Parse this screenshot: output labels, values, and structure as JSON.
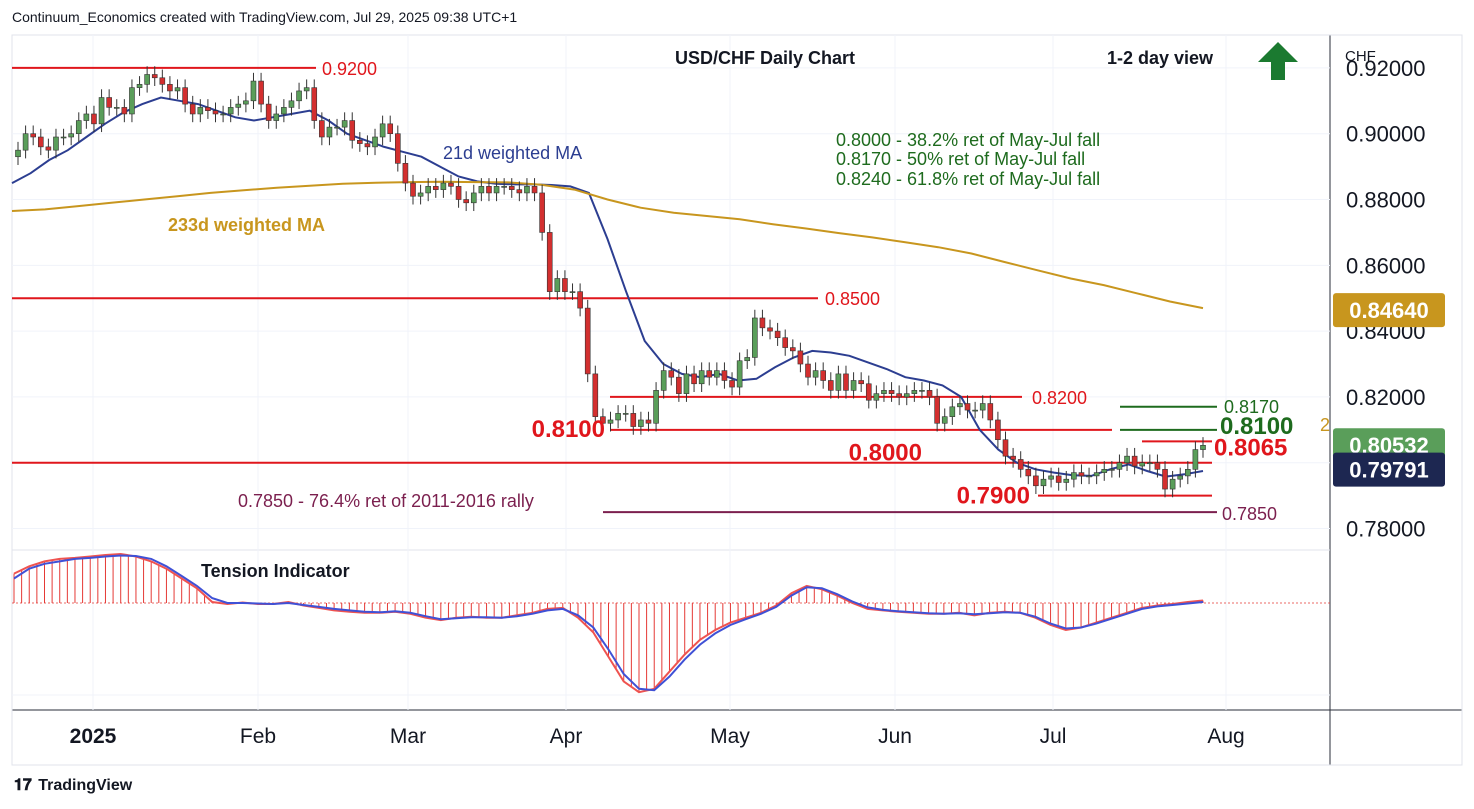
{
  "header": {
    "text": "Continuum_Economics created with TradingView.com, Jul 29, 2025 09:38 UTC+1"
  },
  "footer": {
    "brand": "TradingView"
  },
  "icons": {
    "trend_arrow": "up-arrow-icon",
    "trend_arrow_color": "#1b7a30"
  },
  "chart_data": {
    "type": "candlestick",
    "title": "USD/CHF Daily Chart",
    "subtitle": "1-2 day view",
    "currency_label": "CHF",
    "x_tick_labels": [
      "2025",
      "Feb",
      "Mar",
      "Apr",
      "May",
      "Jun",
      "Jul",
      "Aug"
    ],
    "y_tick_labels": [
      "0.92000",
      "0.90000",
      "0.88000",
      "0.86000",
      "0.84000",
      "0.82000",
      "0.80000",
      "0.78000"
    ],
    "ylim": [
      0.775,
      0.93
    ],
    "grid": true,
    "colors": {
      "up": "#5a9e5a",
      "down": "#d32f2f",
      "ma21": "#2c3e91",
      "ma233": "#c8961e",
      "level": "#e0161c",
      "retrace": "#1e6b1e",
      "ret_7850": "#7b1f4e"
    },
    "price_badges": [
      {
        "label": "0.84640",
        "bg": "#c8961e",
        "fg": "#ffffff",
        "value": 0.8464
      },
      {
        "label": "0.80532",
        "bg": "#5a9e5a",
        "fg": "#ffffff",
        "value": 0.80532
      },
      {
        "label": "0.79791",
        "bg": "#1d2751",
        "fg": "#ffffff",
        "value": 0.79791
      }
    ],
    "ma_labels": {
      "ma21": "21d weighted MA",
      "ma233": "233d weighted MA"
    },
    "retracement_notes": [
      "0.8000 - 38.2% ret of May-Jul fall",
      "0.8170 - 50% ret of May-Jul fall",
      "0.8240 - 61.8% ret of May-Jul fall"
    ],
    "levels": [
      {
        "value": 0.92,
        "label": "0.9200"
      },
      {
        "value": 0.85,
        "label": "0.8500"
      },
      {
        "value": 0.82,
        "label": "0.8200"
      },
      {
        "value": 0.81,
        "label": "0.8100"
      },
      {
        "value": 0.8,
        "label": "0.8000"
      },
      {
        "value": 0.79,
        "label": "0.7900"
      },
      {
        "value": 0.8065,
        "label": "0.8065"
      }
    ],
    "right_labels": [
      {
        "value": 0.817,
        "label": "0.8170"
      },
      {
        "value": 0.81,
        "label": "0.8100"
      }
    ],
    "fib_7850": {
      "value": 0.785,
      "label": "0.7850",
      "note": "0.7850 - 76.4% ret of 2011-2016 rally"
    },
    "close": [
      0.895,
      0.9,
      0.899,
      0.896,
      0.895,
      0.899,
      0.899,
      0.9,
      0.904,
      0.906,
      0.903,
      0.911,
      0.908,
      0.908,
      0.906,
      0.914,
      0.915,
      0.918,
      0.917,
      0.915,
      0.913,
      0.914,
      0.909,
      0.906,
      0.908,
      0.907,
      0.906,
      0.906,
      0.908,
      0.909,
      0.91,
      0.916,
      0.909,
      0.904,
      0.906,
      0.908,
      0.91,
      0.913,
      0.914,
      0.904,
      0.899,
      0.902,
      0.902,
      0.904,
      0.898,
      0.897,
      0.896,
      0.899,
      0.903,
      0.9,
      0.891,
      0.885,
      0.881,
      0.882,
      0.884,
      0.883,
      0.885,
      0.884,
      0.88,
      0.879,
      0.882,
      0.884,
      0.882,
      0.884,
      0.884,
      0.883,
      0.882,
      0.884,
      0.882,
      0.87,
      0.852,
      0.856,
      0.852,
      0.852,
      0.847,
      0.827,
      0.814,
      0.812,
      0.813,
      0.815,
      0.815,
      0.811,
      0.813,
      0.812,
      0.822,
      0.828,
      0.826,
      0.821,
      0.827,
      0.824,
      0.828,
      0.826,
      0.828,
      0.825,
      0.823,
      0.831,
      0.832,
      0.844,
      0.841,
      0.84,
      0.838,
      0.835,
      0.834,
      0.83,
      0.826,
      0.828,
      0.825,
      0.822,
      0.827,
      0.822,
      0.825,
      0.824,
      0.819,
      0.821,
      0.822,
      0.821,
      0.82,
      0.821,
      0.822,
      0.822,
      0.82,
      0.812,
      0.814,
      0.817,
      0.818,
      0.816,
      0.816,
      0.818,
      0.813,
      0.807,
      0.802,
      0.801,
      0.798,
      0.796,
      0.793,
      0.795,
      0.796,
      0.794,
      0.795,
      0.797,
      0.796,
      0.796,
      0.797,
      0.798,
      0.798,
      0.8,
      0.802,
      0.799,
      0.8,
      0.8,
      0.798,
      0.792,
      0.795,
      0.796,
      0.798,
      0.804,
      0.8053
    ],
    "ma21": [
      0.885,
      0.888,
      0.892,
      0.895,
      0.899,
      0.903,
      0.9065,
      0.909,
      0.911,
      0.91,
      0.909,
      0.907,
      0.905,
      0.904,
      0.905,
      0.906,
      0.907,
      0.904,
      0.9,
      0.898,
      0.896,
      0.8945,
      0.893,
      0.89,
      0.887,
      0.8855,
      0.8848,
      0.8846,
      0.8846,
      0.8844,
      0.884,
      0.882,
      0.868,
      0.852,
      0.837,
      0.83,
      0.827,
      0.826,
      0.827,
      0.825,
      0.8255,
      0.829,
      0.832,
      0.834,
      0.8335,
      0.8325,
      0.8305,
      0.8285,
      0.826,
      0.825,
      0.8235,
      0.82,
      0.81,
      0.804,
      0.8,
      0.798,
      0.797,
      0.7962,
      0.796,
      0.798,
      0.7995,
      0.7975,
      0.7958,
      0.7965,
      0.7975
    ],
    "ma233": [
      0.8765,
      0.877,
      0.878,
      0.879,
      0.88,
      0.881,
      0.882,
      0.8828,
      0.8836,
      0.8842,
      0.8848,
      0.8851,
      0.8853,
      0.8854,
      0.8853,
      0.8852,
      0.8845,
      0.883,
      0.88,
      0.8775,
      0.876,
      0.875,
      0.874,
      0.8725,
      0.8712,
      0.8698,
      0.8685,
      0.867,
      0.8655,
      0.8636,
      0.861,
      0.8585,
      0.856,
      0.854,
      0.8515,
      0.849,
      0.847
    ],
    "tension_indicator": {
      "label": "Tension Indicator",
      "histogram": [
        0.6,
        0.75,
        0.85,
        0.9,
        0.92,
        0.95,
        0.98,
        1.0,
        0.95,
        0.85,
        0.7,
        0.5,
        0.3,
        0.02,
        -0.02,
        0.01,
        -0.02,
        -0.02,
        0.02,
        -0.05,
        -0.1,
        -0.15,
        -0.18,
        -0.2,
        -0.2,
        -0.18,
        -0.22,
        -0.3,
        -0.35,
        -0.3,
        -0.28,
        -0.3,
        -0.3,
        -0.25,
        -0.2,
        -0.12,
        -0.1,
        -0.3,
        -0.6,
        -1.1,
        -1.6,
        -1.82,
        -1.75,
        -1.4,
        -1.05,
        -0.75,
        -0.55,
        -0.4,
        -0.3,
        -0.2,
        -0.05,
        0.2,
        0.35,
        0.28,
        0.15,
        0.0,
        -0.12,
        -0.15,
        -0.18,
        -0.2,
        -0.22,
        -0.22,
        -0.2,
        -0.25,
        -0.2,
        -0.18,
        -0.2,
        -0.3,
        -0.45,
        -0.55,
        -0.5,
        -0.4,
        -0.3,
        -0.2,
        -0.1,
        -0.05,
        -0.02,
        0.02,
        0.05
      ],
      "line_blue": [
        0.5,
        0.7,
        0.8,
        0.85,
        0.9,
        0.92,
        0.95,
        0.97,
        0.96,
        0.9,
        0.75,
        0.55,
        0.35,
        0.1,
        0.0,
        0.0,
        -0.01,
        -0.02,
        0.0,
        -0.04,
        -0.08,
        -0.12,
        -0.15,
        -0.18,
        -0.19,
        -0.17,
        -0.2,
        -0.27,
        -0.33,
        -0.31,
        -0.29,
        -0.29,
        -0.3,
        -0.27,
        -0.22,
        -0.15,
        -0.12,
        -0.25,
        -0.5,
        -0.95,
        -1.45,
        -1.75,
        -1.78,
        -1.5,
        -1.15,
        -0.85,
        -0.62,
        -0.45,
        -0.33,
        -0.22,
        -0.08,
        0.15,
        0.32,
        0.3,
        0.18,
        0.03,
        -0.09,
        -0.14,
        -0.17,
        -0.19,
        -0.21,
        -0.22,
        -0.21,
        -0.23,
        -0.21,
        -0.19,
        -0.2,
        -0.28,
        -0.42,
        -0.52,
        -0.5,
        -0.42,
        -0.32,
        -0.22,
        -0.12,
        -0.07,
        -0.04,
        -0.01,
        0.02
      ]
    }
  }
}
